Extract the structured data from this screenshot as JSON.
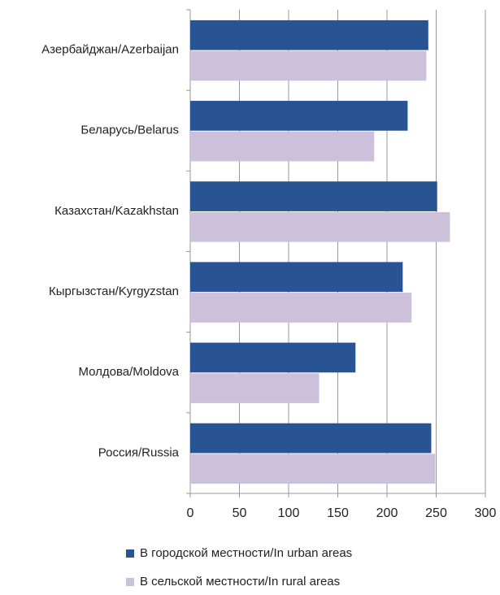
{
  "chart_data": {
    "type": "hbar",
    "categories": [
      "Азербайджан/Azerbaijan",
      "Беларусь/Belarus",
      "Казахстан/Kazakhstan",
      "Кыргызстан/Kyrgyzstan",
      "Молдова/Moldova",
      "Россия/Russia"
    ],
    "series": [
      {
        "name": "В городской местности/In urban areas",
        "color": "#285494",
        "values": [
          242,
          221,
          251,
          216,
          168,
          245
        ]
      },
      {
        "name": "В сельской местности/In rural areas",
        "color": "#ccc0da",
        "values": [
          240,
          187,
          264,
          225,
          131,
          249
        ]
      }
    ],
    "xlim": [
      0,
      300
    ],
    "xticks": [
      0,
      50,
      100,
      150,
      200,
      250,
      300
    ],
    "grid": true,
    "legend": "bottom"
  }
}
